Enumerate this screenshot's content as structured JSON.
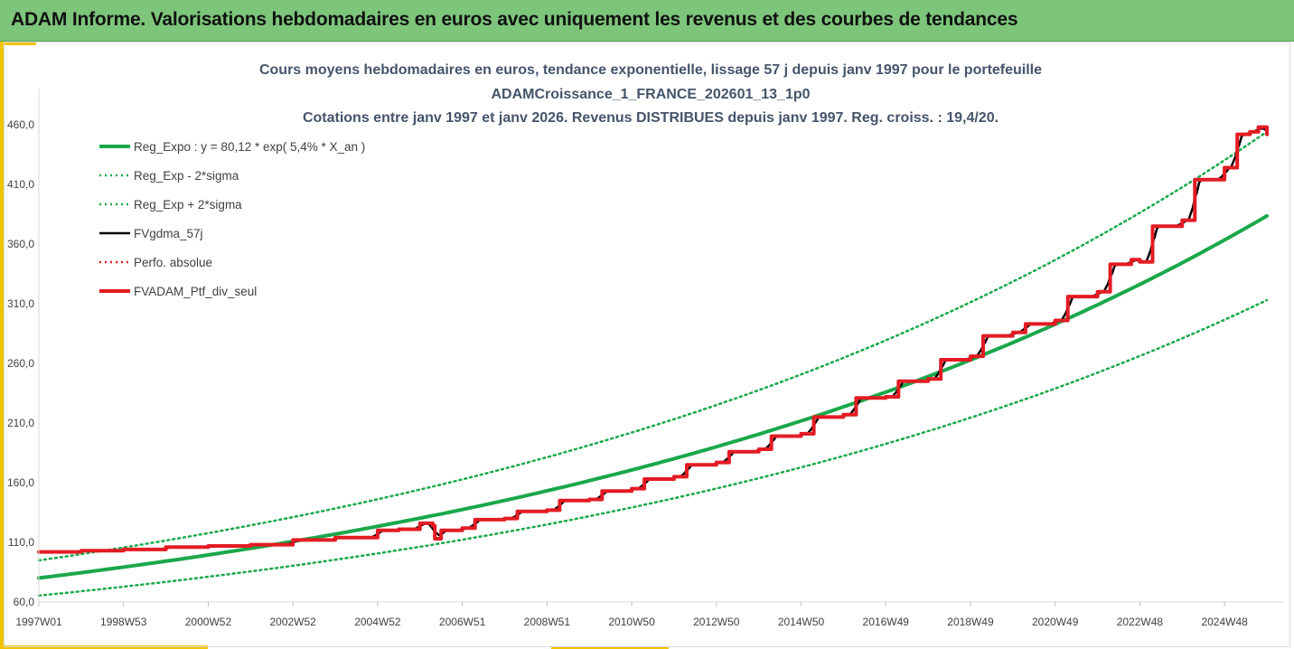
{
  "banner": {
    "title": "ADAM Informe. Valorisations hebdomadaires en euros avec uniquement les revenus et des courbes de tendances"
  },
  "chart_data": {
    "type": "line",
    "title_lines": [
      "Cours moyens hebdomadaires  en euros, tendance exponentielle, lissage 57 j depuis janv 1997 pour le portefeuille",
      "ADAMCroissance_1_FRANCE_202601_13_1p0",
      "Cotations entre janv 1997 et janv 2026. Revenus DISTRIBUES depuis janv 1997. Reg. croiss. : 19,4/20."
    ],
    "xlabel": "",
    "ylabel": "",
    "x_range": [
      1997.0,
      2026.0
    ],
    "ylim": [
      60,
      480
    ],
    "y_ticks": [
      "60,0",
      "110,0",
      "160,0",
      "210,0",
      "260,0",
      "310,0",
      "360,0",
      "410,0",
      "460,0"
    ],
    "y_tick_values": [
      60,
      110,
      160,
      210,
      260,
      310,
      360,
      410,
      460
    ],
    "x_ticks": [
      "1997W01",
      "1998W53",
      "2000W52",
      "2002W52",
      "2004W52",
      "2006W51",
      "2008W51",
      "2010W50",
      "2012W50",
      "2014W50",
      "2016W49",
      "2018W49",
      "2020W49",
      "2022W48",
      "2024W48"
    ],
    "x_tick_values": [
      1997.0,
      1999.0,
      2001.0,
      2003.0,
      2005.0,
      2007.0,
      2009.0,
      2011.0,
      2013.0,
      2015.0,
      2017.0,
      2019.0,
      2021.0,
      2023.0,
      2025.0
    ],
    "regression": {
      "a": 80.12,
      "rate": 0.054,
      "sigma_factor": 0.184
    },
    "series": [
      {
        "name": "Reg_Expo : y = 80,12 * exp( 5,4% *  X_an )",
        "color": "#1aa84a",
        "style": "solid",
        "width": 4
      },
      {
        "name": "Reg_Exp - 2*sigma",
        "color": "#1aa84a",
        "style": "dotted",
        "width": 2.5
      },
      {
        "name": "Reg_Exp + 2*sigma",
        "color": "#1aa84a",
        "style": "dotted",
        "width": 2.5
      },
      {
        "name": "FVgdma_57j",
        "color": "#000000",
        "style": "solid",
        "width": 2.5
      },
      {
        "name": "Perfo. absolue",
        "color": "#e31b23",
        "style": "dotted",
        "width": 2.5
      },
      {
        "name": "FVADAM_Ptf_div_seul",
        "color": "#e31b23",
        "style": "solid",
        "width": 4
      }
    ],
    "portfolio_points": {
      "x": [
        1997.0,
        1998.0,
        1999.0,
        2000.0,
        2001.0,
        2002.0,
        2003.0,
        2004.0,
        2005.0,
        2005.5,
        2006.0,
        2006.3,
        2006.35,
        2006.5,
        2007.0,
        2007.3,
        2008.0,
        2008.3,
        2009.0,
        2009.3,
        2010.0,
        2010.3,
        2011.0,
        2011.3,
        2012.0,
        2012.3,
        2013.0,
        2013.3,
        2014.0,
        2014.3,
        2015.0,
        2015.3,
        2016.0,
        2016.3,
        2017.0,
        2017.3,
        2018.0,
        2018.3,
        2019.0,
        2019.3,
        2020.0,
        2020.3,
        2021.0,
        2021.3,
        2022.0,
        2022.3,
        2022.8,
        2023.0,
        2023.3,
        2024.0,
        2024.3,
        2025.0,
        2025.3,
        2025.6,
        2025.8,
        2026.0
      ],
      "y": [
        102,
        103,
        104,
        106,
        107,
        108,
        112,
        114,
        120,
        121,
        126,
        124,
        113,
        120,
        122,
        129,
        130,
        136,
        137,
        145,
        146,
        153,
        155,
        163,
        165,
        175,
        177,
        186,
        188,
        199,
        201,
        215,
        217,
        231,
        232,
        245,
        247,
        263,
        266,
        283,
        286,
        293,
        296,
        316,
        320,
        343,
        347,
        345,
        375,
        380,
        414,
        424,
        452,
        454,
        458,
        452
      ]
    }
  }
}
